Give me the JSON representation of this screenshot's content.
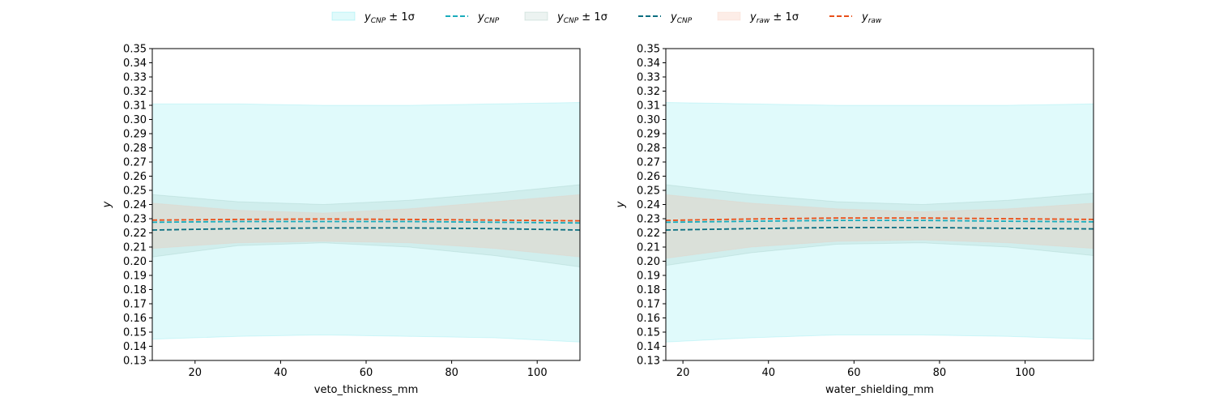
{
  "legend": [
    {
      "kind": "band",
      "label_main": "y",
      "label_sub": "CNP",
      "label_suffix": " ± 1σ",
      "color": "#00d2dc",
      "opacity": 0.12
    },
    {
      "kind": "line",
      "label_main": "y",
      "label_sub": "CNP",
      "label_suffix": "",
      "color": "#1aacbc"
    },
    {
      "kind": "band",
      "label_main": "y",
      "label_sub": "CNP",
      "label_suffix": " ± 1σ",
      "color": "#5f9a8c",
      "opacity": 0.12
    },
    {
      "kind": "line",
      "label_main": "y",
      "label_sub": "CNP",
      "label_suffix": "",
      "color": "#0a6e80"
    },
    {
      "kind": "band",
      "label_main": "y",
      "label_sub": "raw",
      "label_suffix": " ± 1σ",
      "color": "#f6b8a0",
      "opacity": 0.25
    },
    {
      "kind": "line",
      "label_main": "y",
      "label_sub": "raw",
      "label_suffix": "",
      "color": "#e8501a"
    }
  ],
  "chart_data": [
    {
      "type": "line",
      "xlabel": "veto_thickness_mm",
      "ylabel": "y",
      "xlim": [
        10,
        110
      ],
      "ylim": [
        0.13,
        0.35
      ],
      "xticks": [
        20,
        40,
        60,
        80,
        100
      ],
      "yticks": [
        0.13,
        0.14,
        0.15,
        0.16,
        0.17,
        0.18,
        0.19,
        0.2,
        0.21,
        0.22,
        0.23,
        0.24,
        0.25,
        0.26,
        0.27,
        0.28,
        0.29,
        0.3,
        0.31,
        0.32,
        0.33,
        0.34,
        0.35
      ],
      "x": [
        10,
        30,
        50,
        70,
        90,
        110
      ],
      "series": [
        {
          "legend_index": 0,
          "kind": "band",
          "lower": [
            0.145,
            0.147,
            0.148,
            0.147,
            0.146,
            0.143
          ],
          "upper": [
            0.311,
            0.311,
            0.31,
            0.31,
            0.311,
            0.312
          ]
        },
        {
          "legend_index": 2,
          "kind": "band",
          "lower": [
            0.203,
            0.211,
            0.213,
            0.21,
            0.204,
            0.196
          ],
          "upper": [
            0.247,
            0.242,
            0.24,
            0.243,
            0.248,
            0.254
          ]
        },
        {
          "legend_index": 4,
          "kind": "band",
          "lower": [
            0.209,
            0.213,
            0.214,
            0.213,
            0.209,
            0.203
          ],
          "upper": [
            0.241,
            0.236,
            0.234,
            0.237,
            0.242,
            0.247
          ]
        },
        {
          "legend_index": 3,
          "kind": "line",
          "values": [
            0.222,
            0.223,
            0.2235,
            0.2235,
            0.223,
            0.222
          ]
        },
        {
          "legend_index": 1,
          "kind": "line",
          "values": [
            0.2275,
            0.228,
            0.228,
            0.228,
            0.2275,
            0.227
          ]
        },
        {
          "legend_index": 5,
          "kind": "line",
          "values": [
            0.229,
            0.2295,
            0.2298,
            0.2295,
            0.229,
            0.2285
          ]
        }
      ]
    },
    {
      "type": "line",
      "xlabel": "water_shielding_mm",
      "ylabel": "y",
      "xlim": [
        16,
        116
      ],
      "ylim": [
        0.13,
        0.35
      ],
      "xticks": [
        20,
        40,
        60,
        80,
        100
      ],
      "yticks": [
        0.13,
        0.14,
        0.15,
        0.16,
        0.17,
        0.18,
        0.19,
        0.2,
        0.21,
        0.22,
        0.23,
        0.24,
        0.25,
        0.26,
        0.27,
        0.28,
        0.29,
        0.3,
        0.31,
        0.32,
        0.33,
        0.34,
        0.35
      ],
      "x": [
        16,
        36,
        56,
        76,
        96,
        116
      ],
      "series": [
        {
          "legend_index": 0,
          "kind": "band",
          "lower": [
            0.143,
            0.146,
            0.148,
            0.148,
            0.147,
            0.145
          ],
          "upper": [
            0.312,
            0.311,
            0.31,
            0.31,
            0.31,
            0.311
          ]
        },
        {
          "legend_index": 2,
          "kind": "band",
          "lower": [
            0.197,
            0.206,
            0.212,
            0.213,
            0.21,
            0.204
          ],
          "upper": [
            0.254,
            0.247,
            0.242,
            0.24,
            0.243,
            0.248
          ]
        },
        {
          "legend_index": 4,
          "kind": "band",
          "lower": [
            0.202,
            0.21,
            0.214,
            0.215,
            0.213,
            0.209
          ],
          "upper": [
            0.247,
            0.241,
            0.237,
            0.235,
            0.237,
            0.241
          ]
        },
        {
          "legend_index": 3,
          "kind": "line",
          "values": [
            0.222,
            0.223,
            0.2238,
            0.2238,
            0.2232,
            0.2228
          ]
        },
        {
          "legend_index": 1,
          "kind": "line",
          "values": [
            0.2275,
            0.2282,
            0.2288,
            0.2288,
            0.2282,
            0.2278
          ]
        },
        {
          "legend_index": 5,
          "kind": "line",
          "values": [
            0.2288,
            0.2298,
            0.2305,
            0.2305,
            0.23,
            0.2295
          ]
        }
      ]
    }
  ]
}
